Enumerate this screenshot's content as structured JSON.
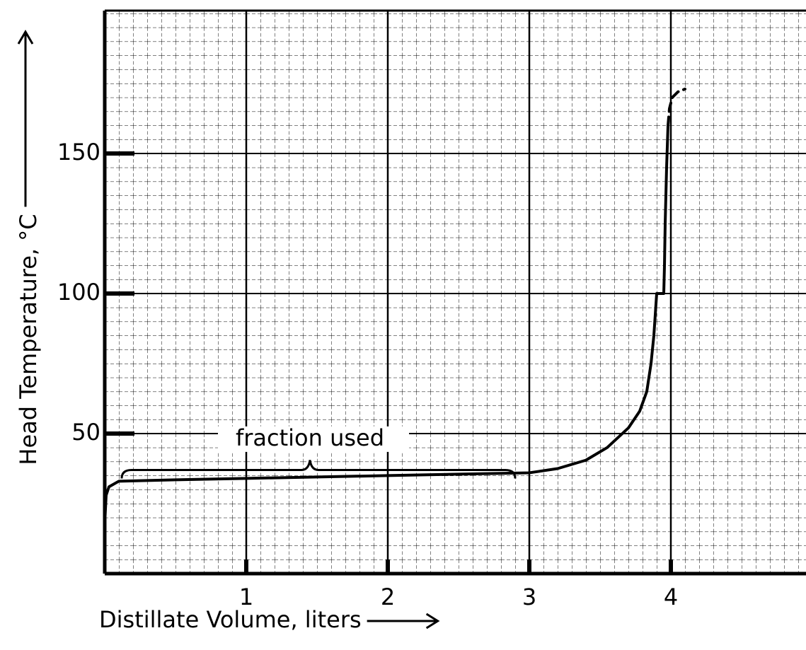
{
  "chart_data": {
    "type": "line",
    "x_label": "Distillate Volume, liters",
    "y_label": "Head Temperature, °C",
    "xlim": [
      0,
      4.955
    ],
    "ylim": [
      0,
      200
    ],
    "xticks": [
      1,
      2,
      3,
      4
    ],
    "yticks": [
      50,
      100,
      150
    ],
    "grid": true,
    "color": "#000000",
    "series": [
      {
        "style": "solid",
        "x": [
          0,
          0.01,
          0.03,
          0.1,
          0.5,
          1,
          1.5,
          2,
          2.5,
          3,
          3.2,
          3.4,
          3.55,
          3.7,
          3.78,
          3.83,
          3.86,
          3.88,
          3.9,
          3.93,
          3.95,
          3.955,
          3.96,
          3.97,
          3.98
        ],
        "values": [
          18,
          28,
          31,
          33,
          33.5,
          34,
          34.5,
          35,
          35.5,
          36,
          37.5,
          40.5,
          45,
          52,
          58,
          65,
          75,
          85,
          100,
          100,
          100,
          110,
          125,
          145,
          160
        ]
      },
      {
        "style": "dashed",
        "x": [
          3.98,
          3.99,
          4.01,
          4.05,
          4.1
        ],
        "values": [
          160,
          166,
          170,
          172,
          173
        ]
      }
    ],
    "annotation": {
      "text": "fraction used",
      "x": 1.45,
      "y": 48,
      "brace_x": [
        0.12,
        2.9
      ],
      "brace_y": 37
    }
  }
}
